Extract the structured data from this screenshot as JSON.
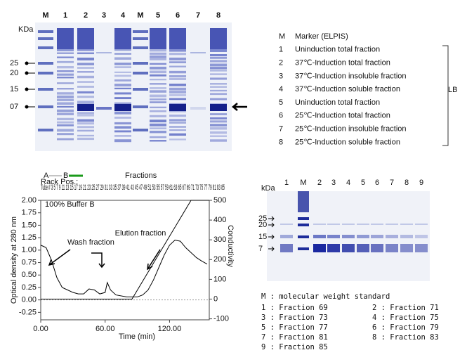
{
  "top_gel": {
    "unit_label": "KDa",
    "lane_labels": [
      "M",
      "1",
      "2",
      "3",
      "4",
      "M",
      "5",
      "6",
      "7",
      "8"
    ],
    "marker_labels": [
      "25",
      "20",
      "15",
      "07"
    ]
  },
  "top_legend": {
    "rows": [
      {
        "key": "M",
        "text": "Marker (ELPIS)"
      },
      {
        "key": "1",
        "text": "Uninduction total fraction"
      },
      {
        "key": "2",
        "text": "37℃-Induction total fraction"
      },
      {
        "key": "3",
        "text": "37℃-Induction insoluble fraction"
      },
      {
        "key": "4",
        "text": "37℃-Induction soluble fraction"
      },
      {
        "key": "5",
        "text": "Uninduction total fraction"
      },
      {
        "key": "6",
        "text": "25℃-Induction total fraction"
      },
      {
        "key": "7",
        "text": "25℃-Induction insoluble fraction"
      },
      {
        "key": "8",
        "text": "25℃-Induction soluble fraction"
      }
    ],
    "bracket_label": "LB"
  },
  "chromatogram": {
    "legend_a": "A",
    "legend_b": "B",
    "fractions_label": "Fractions",
    "rack_label": "Rack Pos.:",
    "tube_label": "Tube # 3 5 7 9 11 13 15 17 19 21 23 25 27 29 31 33 35 37 39 41 43 45 47 49 51 53 55 57 59 61 63 65 67 69 71 73 75 77 79 81 83 85",
    "buffer_label": "100% Buffer B",
    "y_label": "Optical density at 280 nm",
    "y2_label": "Conductivity",
    "x_label": "Time (min)",
    "annotations": [
      "Wash fraction",
      "Elution fraction"
    ],
    "xlim": [
      0,
      157
    ],
    "xticks": [
      {
        "value": 0,
        "label": "0.00"
      },
      {
        "value": 60,
        "label": "60.00"
      },
      {
        "value": 120,
        "label": "120.00"
      }
    ],
    "ylim": [
      -0.4,
      2.0
    ],
    "yticks": [
      {
        "value": 2,
        "label": "2.00"
      },
      1.75,
      {
        "value": 1.5,
        "label": "1.50"
      },
      1.25,
      {
        "value": 1,
        "label": "1.00"
      },
      0.75,
      {
        "value": 0.5,
        "label": "0.50"
      },
      0.25,
      {
        "value": 0,
        "label": "0.00"
      },
      -0.25
    ],
    "y2lim": [
      -105,
      500
    ],
    "y2ticks": [
      500,
      400,
      300,
      200,
      100,
      0,
      -100
    ],
    "series": [
      {
        "name": "A",
        "color": "#000000",
        "x": [
          0,
          5,
          10,
          15,
          20,
          25,
          30,
          35,
          40,
          45,
          50,
          55,
          60,
          62,
          65,
          70,
          80,
          90,
          95,
          100,
          105,
          110,
          115,
          120,
          125,
          130,
          135,
          140,
          145,
          150,
          155
        ],
        "values": [
          1.1,
          1.05,
          0.8,
          0.45,
          0.25,
          0.2,
          0.15,
          0.12,
          0.12,
          0.22,
          0.2,
          0.12,
          0.15,
          0.35,
          0.2,
          0.1,
          0.06,
          0.06,
          0.1,
          0.2,
          0.4,
          0.65,
          0.9,
          1.1,
          1.2,
          1.18,
          1.05,
          0.95,
          0.85,
          0.78,
          0.72
        ]
      },
      {
        "name": "B",
        "color": "#000000",
        "axis": "y2",
        "x": [
          0,
          50,
          85,
          140,
          157
        ],
        "values": [
          0,
          0,
          0,
          500,
          500
        ]
      }
    ]
  },
  "bottom_gel": {
    "unit_label": "kDa",
    "lane_labels": [
      "1",
      "M",
      "2",
      "3",
      "4",
      "5",
      "6",
      "7",
      "8",
      "9"
    ],
    "marker_labels": [
      "25",
      "20",
      "15",
      "7"
    ],
    "legend_title": "M : molecular weight standard",
    "legend_entries": [
      "1 : Fraction 69",
      "2 : Fraction 71",
      "3 : Fraction 73",
      "4 : Fraction 75",
      "5 : Fraction 77",
      "6 : Fraction 79",
      "7 : Fraction 81",
      "8 : Fraction 83",
      "9 : Fraction 85"
    ]
  }
}
